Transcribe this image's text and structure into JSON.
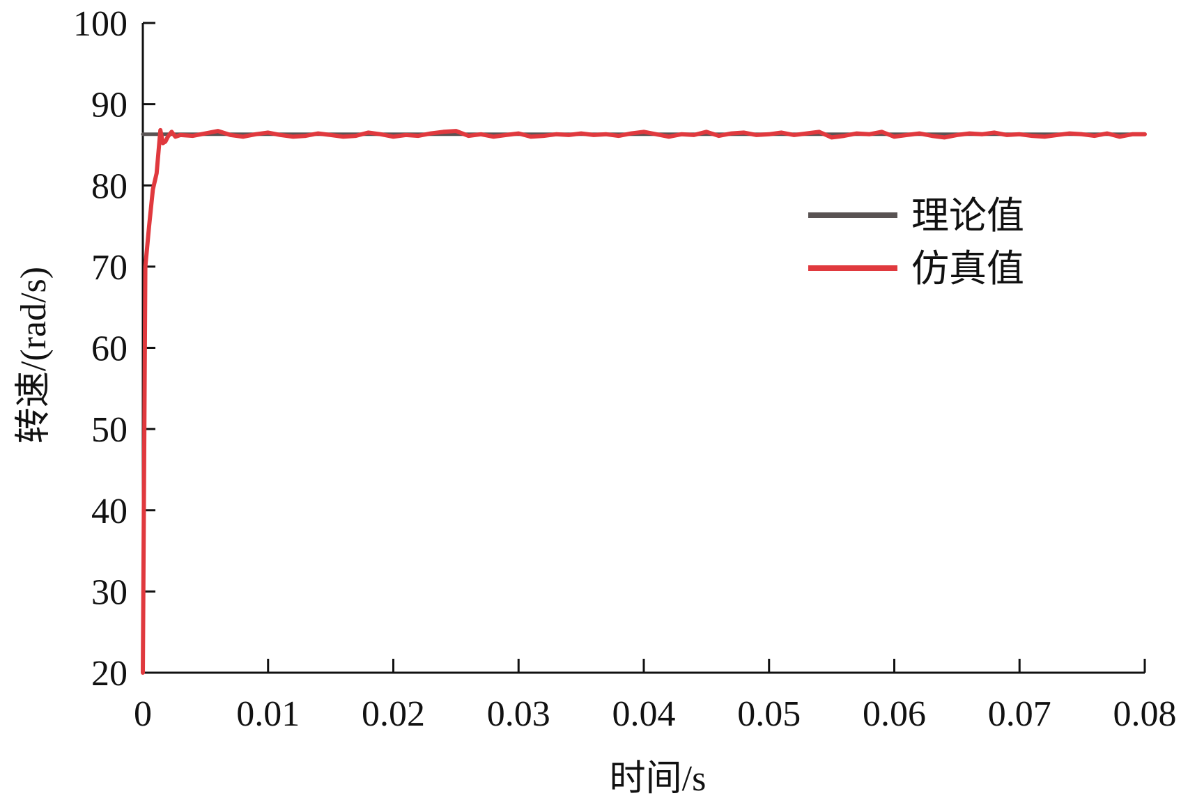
{
  "chart_data": {
    "type": "line",
    "title": "",
    "xlabel": "时间/s",
    "ylabel": "转速/(rad/s)",
    "xlim": [
      0,
      0.08
    ],
    "ylim": [
      20,
      100
    ],
    "x_ticks": [
      0,
      0.01,
      0.02,
      0.03,
      0.04,
      0.05,
      0.06,
      0.07,
      0.08
    ],
    "x_tick_labels": [
      "0",
      "0.01",
      "0.02",
      "0.03",
      "0.04",
      "0.05",
      "0.06",
      "0.07",
      "0.08"
    ],
    "y_ticks": [
      20,
      30,
      40,
      50,
      60,
      70,
      80,
      90,
      100
    ],
    "y_tick_labels": [
      "20",
      "30",
      "40",
      "50",
      "60",
      "70",
      "80",
      "90",
      "100"
    ],
    "grid": false,
    "legend_position": "right",
    "series": [
      {
        "name": "理论值",
        "color": "#595353",
        "x": [
          0,
          0.08
        ],
        "y": [
          86.3,
          86.3
        ]
      },
      {
        "name": "仿真值",
        "color": "#e0393e",
        "x": [
          0,
          0.0002,
          0.0005,
          0.0008,
          0.0011,
          0.0014,
          0.0016,
          0.0018,
          0.002,
          0.0023,
          0.0026,
          0.003,
          0.004,
          0.005,
          0.006,
          0.007,
          0.008,
          0.009,
          0.01,
          0.011,
          0.012,
          0.013,
          0.014,
          0.015,
          0.016,
          0.017,
          0.018,
          0.019,
          0.02,
          0.021,
          0.022,
          0.023,
          0.024,
          0.025,
          0.026,
          0.027,
          0.028,
          0.029,
          0.03,
          0.031,
          0.032,
          0.033,
          0.034,
          0.035,
          0.036,
          0.037,
          0.038,
          0.039,
          0.04,
          0.041,
          0.042,
          0.043,
          0.044,
          0.045,
          0.046,
          0.047,
          0.048,
          0.049,
          0.05,
          0.051,
          0.052,
          0.053,
          0.054,
          0.055,
          0.056,
          0.057,
          0.058,
          0.059,
          0.06,
          0.061,
          0.062,
          0.063,
          0.064,
          0.065,
          0.066,
          0.067,
          0.068,
          0.069,
          0.07,
          0.071,
          0.072,
          0.073,
          0.074,
          0.075,
          0.076,
          0.077,
          0.078,
          0.079,
          0.08
        ],
        "y": [
          20,
          70,
          75,
          79.5,
          81.5,
          86.8,
          85.2,
          85.4,
          86.0,
          86.6,
          86.0,
          86.2,
          86.1,
          86.4,
          86.7,
          86.2,
          86.0,
          86.3,
          86.5,
          86.2,
          86.0,
          86.1,
          86.4,
          86.2,
          86.0,
          86.1,
          86.5,
          86.3,
          86.0,
          86.2,
          86.1,
          86.4,
          86.6,
          86.7,
          86.1,
          86.3,
          86.0,
          86.2,
          86.4,
          86.0,
          86.1,
          86.3,
          86.2,
          86.4,
          86.2,
          86.3,
          86.1,
          86.4,
          86.6,
          86.3,
          86.0,
          86.3,
          86.2,
          86.6,
          86.1,
          86.4,
          86.5,
          86.2,
          86.3,
          86.5,
          86.2,
          86.4,
          86.6,
          85.9,
          86.1,
          86.4,
          86.3,
          86.6,
          86.0,
          86.2,
          86.4,
          86.1,
          85.9,
          86.2,
          86.4,
          86.3,
          86.5,
          86.2,
          86.3,
          86.1,
          86.0,
          86.2,
          86.4,
          86.3,
          86.1,
          86.4,
          86.0,
          86.3,
          86.3
        ]
      }
    ]
  }
}
